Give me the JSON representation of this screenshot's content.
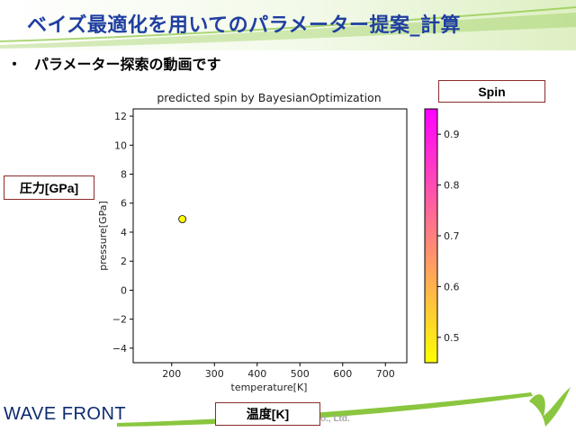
{
  "slide": {
    "title": "ベイズ最適化を用いてのパラメーター提案_計算",
    "bullet_mark": "・",
    "bullet_text": "パラメーター探索の動画です",
    "colors": {
      "title": "#1f3fa0",
      "accent_green": "#8ac63f",
      "box_border": "#8a2b2b"
    }
  },
  "labels": {
    "spin": "Spin",
    "pressure": "圧力[GPa]",
    "temperature": "温度[K]"
  },
  "footer": {
    "logo": "WAVE FRONT",
    "copyright_fragment": "o., Ltd."
  },
  "chart_data": {
    "type": "scatter",
    "title": "predicted spin by BayesianOptimization",
    "xlabel": "temperature[K]",
    "ylabel": "pressure[GPa]",
    "xlim": [
      110,
      750
    ],
    "ylim": [
      -5,
      12.5
    ],
    "xticks": [
      200,
      300,
      400,
      500,
      600,
      700
    ],
    "yticks": [
      -4,
      -2,
      0,
      2,
      4,
      6,
      8,
      10,
      12
    ],
    "points": [
      {
        "x": 225,
        "y": 4.9,
        "spin": 0.45
      }
    ],
    "grid": false,
    "colorbar": {
      "ticks": [
        0.5,
        0.6,
        0.7,
        0.8,
        0.9
      ],
      "range": [
        0.45,
        0.95
      ],
      "colormap_from": "#ffff00",
      "colormap_to": "#ff00ff"
    }
  }
}
